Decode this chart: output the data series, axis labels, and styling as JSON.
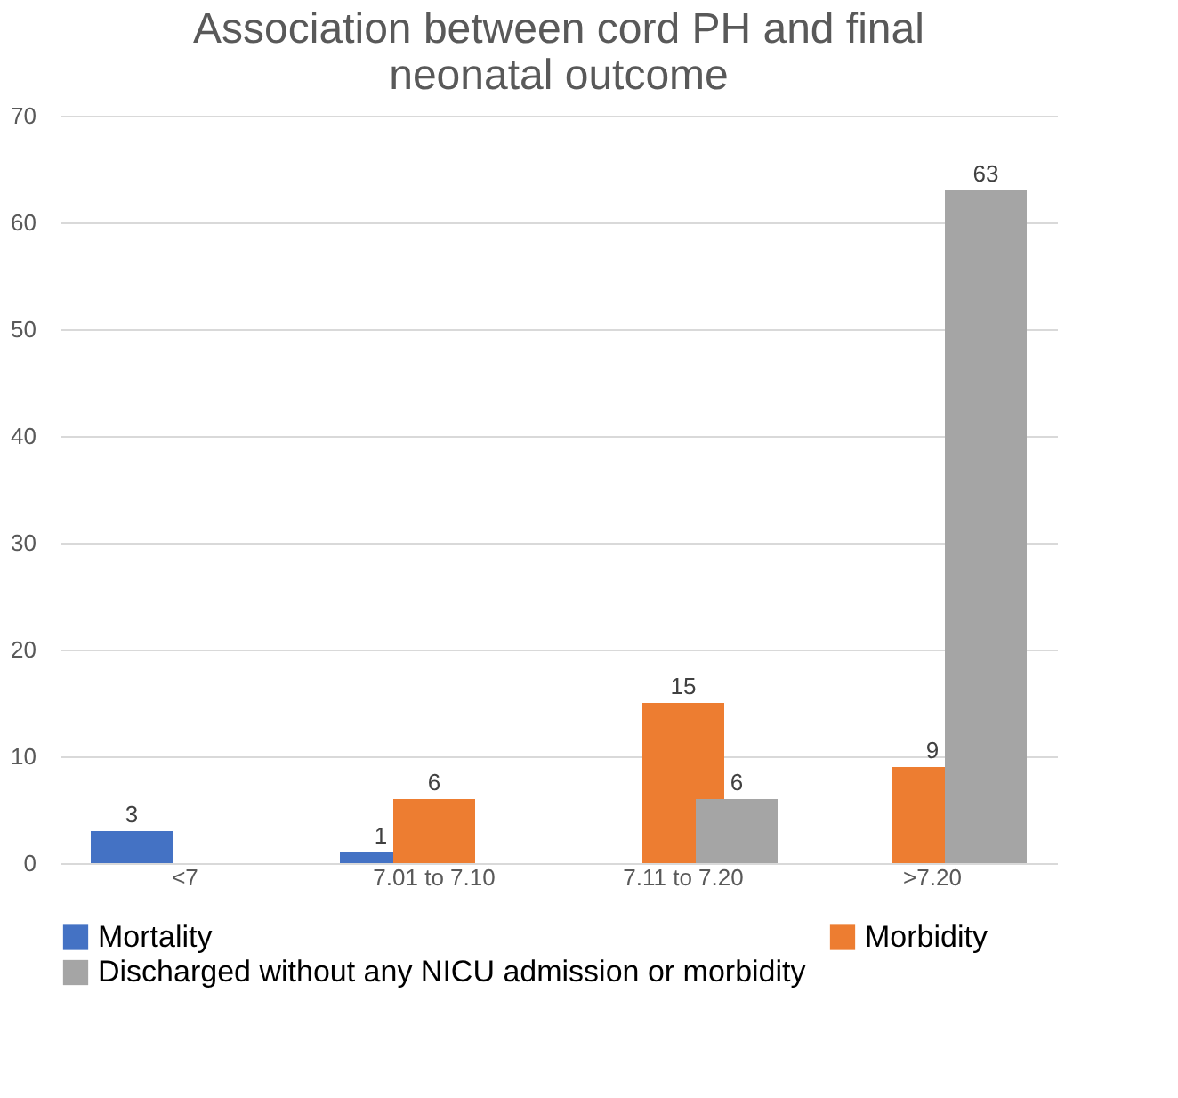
{
  "chart_data": {
    "type": "bar",
    "title": "Association between cord PH and final\nneonatal outcome",
    "categories": [
      "<7",
      "7.01 to 7.10",
      "7.11 to 7.20",
      ">7.20"
    ],
    "series": [
      {
        "name": "Mortality",
        "color": "#4472c4",
        "values": [
          3,
          1,
          null,
          null
        ]
      },
      {
        "name": "Morbidity",
        "color": "#ed7d31",
        "values": [
          null,
          6,
          15,
          9
        ]
      },
      {
        "name": "Discharged without any NICU admission or morbidity",
        "color": "#a5a5a5",
        "values": [
          null,
          null,
          6,
          63
        ]
      }
    ],
    "ylim": [
      0,
      70
    ],
    "yticks": [
      0,
      10,
      20,
      30,
      40,
      50,
      60,
      70
    ],
    "grid": "y",
    "legend": "bottom",
    "data_labels": true
  }
}
